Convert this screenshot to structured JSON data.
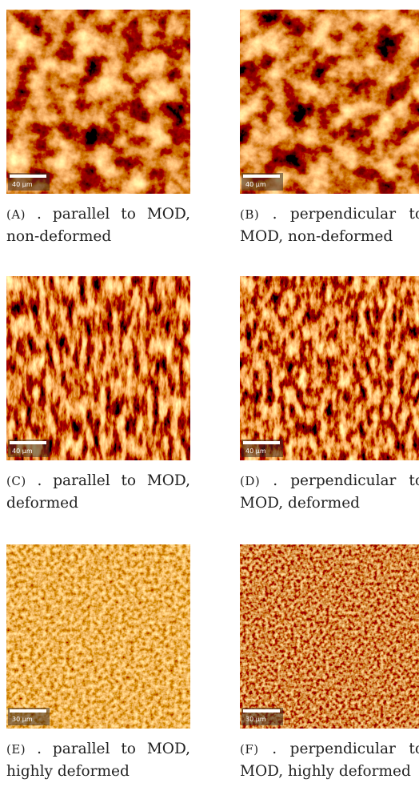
{
  "panels": [
    {
      "label": "(A)",
      "caption": ". parallel to MOD, non-deformed",
      "scale_bar": "40 µm"
    },
    {
      "label": "(B)",
      "caption": ". perpendicular to MOD, non-deformed",
      "scale_bar": "40 µm"
    },
    {
      "label": "(C)",
      "caption": ". parallel to MOD, deformed",
      "scale_bar": "40 µm"
    },
    {
      "label": "(D)",
      "caption": ". perpendicular to MOD, deformed",
      "scale_bar": "40 µm"
    },
    {
      "label": "(E)",
      "caption": ". parallel to MOD, highly deformed",
      "scale_bar": "30 µm"
    },
    {
      "label": "(F)",
      "caption": ". perpendicular to MOD, highly deformed",
      "scale_bar": "30 µm"
    }
  ]
}
